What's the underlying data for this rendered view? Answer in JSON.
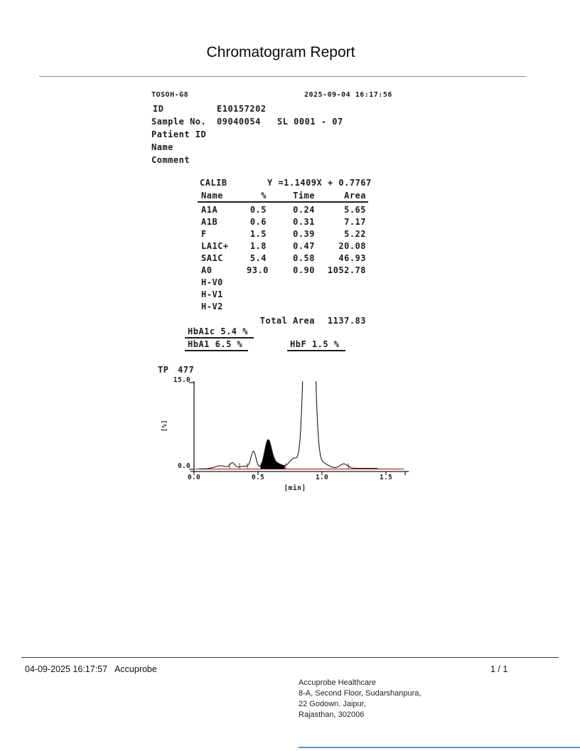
{
  "title": "Chromatogram Report",
  "device": {
    "model": "TOSOH-G8",
    "datetime": "2025-09-04 16:17:56"
  },
  "sample": {
    "id_label": "ID",
    "id_value": "E10157202",
    "sample_no_label": "Sample No.",
    "sample_no_value": "09040054",
    "sl_value": "SL 0001 - 07",
    "patient_id_label": "Patient ID",
    "name_label": "Name",
    "comment_label": "Comment"
  },
  "calib": {
    "label": "CALIB",
    "equation": "Y =1.1409X + 0.7767",
    "columns": [
      "Name",
      "%",
      "Time",
      "Area"
    ],
    "rows": [
      {
        "name": "A1A",
        "pct": "0.5",
        "time": "0.24",
        "area": "5.65"
      },
      {
        "name": "A1B",
        "pct": "0.6",
        "time": "0.31",
        "area": "7.17"
      },
      {
        "name": "F",
        "pct": "1.5",
        "time": "0.39",
        "area": "5.22"
      },
      {
        "name": "LA1C+",
        "pct": "1.8",
        "time": "0.47",
        "area": "20.08"
      },
      {
        "name": "SA1C",
        "pct": "5.4",
        "time": "0.58",
        "area": "46.93"
      },
      {
        "name": "A0",
        "pct": "93.0",
        "time": "0.90",
        "area": "1052.78"
      },
      {
        "name": "H-V0",
        "pct": "",
        "time": "",
        "area": ""
      },
      {
        "name": "H-V1",
        "pct": "",
        "time": "",
        "area": ""
      },
      {
        "name": "H-V2",
        "pct": "",
        "time": "",
        "area": ""
      }
    ],
    "total_label": "Total Area",
    "total_value": "1137.83"
  },
  "results": {
    "hba1c": "HbA1c 5.4 %",
    "hba1": "HbA1 6.5 %",
    "hbf": "HbF 1.5 %"
  },
  "chart_data": {
    "type": "line",
    "subtype": "chromatogram",
    "tp_label": "TP",
    "tp_value": "477",
    "ylabel": "[%]",
    "xlabel": "[min]",
    "ylim": [
      0.0,
      15.0
    ],
    "ytick_labels": [
      "15.0",
      "0.0"
    ],
    "xticks": [
      0.0,
      0.5,
      1.0,
      1.5
    ],
    "xtick_labels": [
      "0.0",
      "0.5",
      "1.0",
      "1.5"
    ],
    "xmax_plotted": 1.65,
    "baseline_offset": 0.07,
    "baseline_color": "#b03030",
    "curve_color": "#1a1a1a",
    "filled_region": [
      0.52,
      0.71
    ],
    "delimiters": [
      0.278,
      0.356,
      0.417,
      0.522,
      0.717,
      1.206
    ],
    "curve": [
      {
        "name": "A1A",
        "time": 0.21,
        "height": 0.55,
        "sigma": 0.05
      },
      {
        "name": "A1B",
        "time": 0.3,
        "height": 0.95,
        "sigma": 0.018
      },
      {
        "name": "",
        "time": 0.36,
        "height": 0.3,
        "sigma": 0.03
      },
      {
        "name": "F",
        "time": 0.41,
        "height": 0.35,
        "sigma": 0.03
      },
      {
        "name": "LA1C+",
        "time": 0.465,
        "height": 3.0,
        "sigma": 0.02
      },
      {
        "name": "SA1C",
        "time": 0.578,
        "height": 4.6,
        "sigma": 0.027
      },
      {
        "name": "",
        "time": 0.64,
        "height": 1.0,
        "sigma": 0.05
      },
      {
        "name": "",
        "time": 0.78,
        "height": 1.8,
        "sigma": 0.035
      },
      {
        "name": "A0",
        "time": 0.9,
        "height": 55.0,
        "sigma": 0.032
      },
      {
        "name": "",
        "time": 0.99,
        "height": 1.1,
        "sigma": 0.055
      },
      {
        "name": "",
        "time": 1.17,
        "height": 0.8,
        "sigma": 0.03
      },
      {
        "name": "",
        "time": 1.3,
        "height": 0.12,
        "sigma": 0.15
      }
    ]
  },
  "footer": {
    "datetime": "04-09-2025 16:17:57",
    "app": "Accuprobe",
    "page": "1 / 1",
    "address": [
      "Accuprobe Healthcare",
      "8-A, Second Floor, Sudarshanpura,",
      "22 Godown. Jaipur,",
      "Rajasthan, 302006"
    ]
  }
}
